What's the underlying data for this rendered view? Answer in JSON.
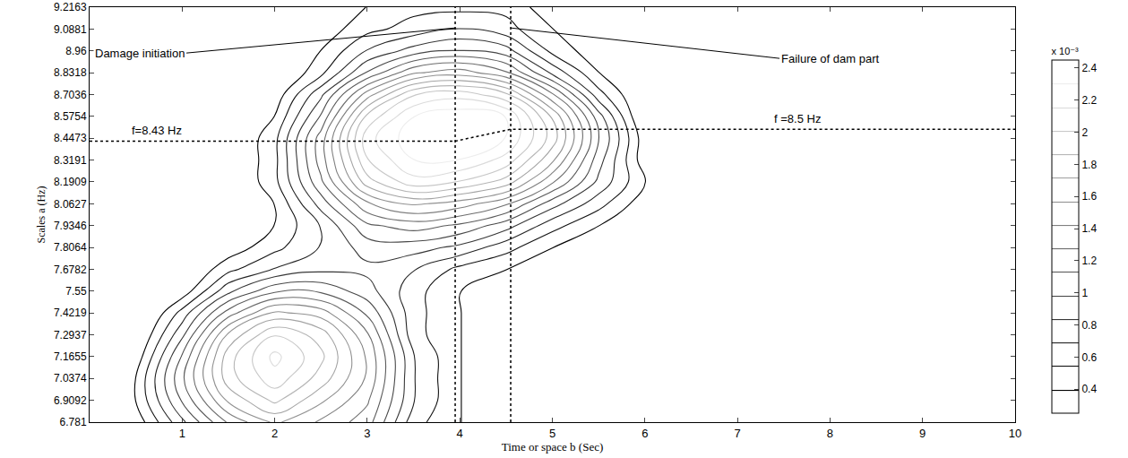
{
  "chart_data": {
    "type": "contour",
    "xlabel": "Time or space b (Sec)",
    "ylabel": "Scales a (Hz)",
    "xlim": [
      0,
      10
    ],
    "xticks": [
      1,
      2,
      3,
      4,
      5,
      6,
      7,
      8,
      9,
      10
    ],
    "ylim": [
      6.781,
      9.2163
    ],
    "yticks": [
      6.781,
      6.9092,
      7.0374,
      7.1655,
      7.2937,
      7.4219,
      7.55,
      7.6782,
      7.8064,
      7.9346,
      8.0627,
      8.1909,
      8.3191,
      8.4473,
      8.5754,
      8.7036,
      8.8318,
      8.96,
      9.0881,
      9.2163
    ],
    "x": [
      0,
      0.5,
      1,
      1.5,
      2,
      2.5,
      3,
      3.5,
      4,
      4.5,
      5,
      5.5,
      6,
      6.5,
      7,
      7.5,
      8,
      8.5,
      9,
      9.5,
      10
    ],
    "y": [
      6.781,
      6.9092,
      7.0374,
      7.1655,
      7.2937,
      7.4219,
      7.55,
      7.6782,
      7.8064,
      7.9346,
      8.0627,
      8.1909,
      8.3191,
      8.4473,
      8.5754,
      8.7036,
      8.8318,
      8.96,
      9.0881,
      9.2163
    ],
    "z": [
      [
        0.1,
        0.3,
        0.8,
        1.3,
        1.6,
        1.4,
        1.2,
        0.6,
        0.4,
        0.3,
        0.2,
        0.1,
        0.1,
        0.1,
        0.1,
        0.2,
        0.3,
        0.3,
        0.3,
        0.1,
        0.1
      ],
      [
        0.1,
        0.4,
        1.0,
        1.6,
        1.9,
        1.6,
        1.3,
        0.7,
        0.4,
        0.3,
        0.2,
        0.1,
        0.1,
        0.2,
        0.1,
        0.1,
        0.2,
        0.2,
        0.2,
        0.1,
        0.1
      ],
      [
        0.1,
        0.4,
        1.1,
        1.8,
        2.1,
        1.8,
        1.4,
        0.7,
        0.4,
        0.3,
        0.2,
        0.1,
        0.3,
        0.2,
        0.1,
        0.1,
        0.1,
        0.1,
        0.1,
        0.1,
        0.1
      ],
      [
        0.1,
        0.3,
        1.0,
        1.8,
        2.2,
        1.9,
        1.4,
        0.7,
        0.4,
        0.3,
        0.2,
        0.2,
        0.1,
        0.3,
        0.2,
        0.1,
        0.1,
        0.1,
        0.1,
        0.1,
        0.1
      ],
      [
        0.1,
        0.2,
        0.8,
        1.6,
        2.0,
        1.8,
        1.3,
        0.6,
        0.4,
        0.3,
        0.2,
        0.1,
        0.1,
        0.3,
        0.3,
        0.2,
        0.1,
        0.1,
        0.1,
        0.1,
        0.1
      ],
      [
        0.1,
        0.1,
        0.6,
        1.2,
        1.6,
        1.5,
        1.1,
        0.6,
        0.4,
        0.3,
        0.2,
        0.3,
        0.1,
        0.2,
        0.3,
        0.2,
        0.1,
        0.1,
        0.1,
        0.1,
        0.1
      ],
      [
        0.1,
        0.1,
        0.3,
        0.8,
        1.1,
        1.1,
        0.9,
        0.6,
        0.4,
        0.3,
        0.2,
        0.1,
        0.1,
        0.1,
        0.2,
        0.3,
        0.1,
        0.1,
        0.1,
        0.1,
        0.1
      ],
      [
        0.1,
        0.1,
        0.2,
        0.5,
        0.7,
        0.8,
        0.8,
        0.7,
        0.5,
        0.4,
        0.3,
        0.2,
        0.1,
        0.1,
        0.1,
        0.1,
        0.1,
        0.1,
        0.1,
        0.1,
        0.1
      ],
      [
        0.1,
        0.1,
        0.1,
        0.3,
        0.5,
        0.7,
        0.9,
        0.9,
        0.8,
        0.6,
        0.4,
        0.2,
        0.1,
        0.1,
        0.1,
        0.1,
        0.1,
        0.1,
        0.1,
        0.1,
        0.1
      ],
      [
        0.1,
        0.1,
        0.1,
        0.2,
        0.4,
        0.7,
        1.1,
        1.2,
        1.1,
        0.9,
        0.6,
        0.4,
        0.2,
        0.1,
        0.1,
        0.1,
        0.1,
        0.1,
        0.1,
        0.1,
        0.1
      ],
      [
        0.1,
        0.1,
        0.1,
        0.2,
        0.4,
        0.9,
        1.4,
        1.6,
        1.5,
        1.3,
        0.9,
        0.6,
        0.3,
        0.1,
        0.1,
        0.1,
        0.1,
        0.1,
        0.1,
        0.1,
        0.1
      ],
      [
        0.1,
        0.1,
        0.1,
        0.2,
        0.5,
        1.1,
        1.8,
        2.1,
        2.0,
        1.8,
        1.3,
        0.8,
        0.4,
        0.1,
        0.1,
        0.1,
        0.1,
        0.1,
        0.1,
        0.1,
        0.1
      ],
      [
        0.1,
        0.1,
        0.1,
        0.2,
        0.5,
        1.2,
        2.0,
        2.3,
        2.3,
        2.1,
        1.6,
        0.9,
        0.3,
        0.1,
        0.1,
        0.1,
        0.1,
        0.1,
        0.1,
        0.1,
        0.1
      ],
      [
        0.1,
        0.1,
        0.1,
        0.2,
        0.5,
        1.2,
        2.1,
        2.4,
        2.4,
        2.3,
        1.8,
        1.0,
        0.3,
        0.1,
        0.1,
        0.1,
        0.1,
        0.1,
        0.1,
        0.1,
        0.1
      ],
      [
        0.1,
        0.1,
        0.1,
        0.1,
        0.4,
        1.0,
        1.9,
        2.3,
        2.4,
        2.3,
        1.7,
        0.9,
        0.2,
        0.1,
        0.1,
        0.1,
        0.1,
        0.1,
        0.1,
        0.1,
        0.1
      ],
      [
        0.1,
        0.1,
        0.1,
        0.1,
        0.3,
        0.8,
        1.5,
        2.0,
        2.1,
        1.9,
        1.3,
        0.6,
        0.2,
        0.1,
        0.1,
        0.1,
        0.1,
        0.1,
        0.1,
        0.1,
        0.1
      ],
      [
        0.1,
        0.1,
        0.1,
        0.1,
        0.2,
        0.5,
        1.0,
        1.4,
        1.5,
        1.3,
        0.8,
        0.4,
        0.1,
        0.1,
        0.1,
        0.1,
        0.1,
        0.1,
        0.1,
        0.1,
        0.1
      ],
      [
        0.1,
        0.1,
        0.1,
        0.1,
        0.1,
        0.4,
        0.7,
        0.9,
        1.0,
        0.9,
        0.5,
        0.3,
        0.1,
        0.1,
        0.1,
        0.1,
        0.1,
        0.1,
        0.1,
        0.1,
        0.1
      ],
      [
        0.1,
        0.1,
        0.1,
        0.1,
        0.1,
        0.3,
        0.5,
        0.6,
        0.7,
        0.6,
        0.4,
        0.2,
        0.1,
        0.1,
        0.1,
        0.1,
        0.1,
        0.1,
        0.1,
        0.1,
        0.1
      ],
      [
        0.1,
        0.1,
        0.1,
        0.1,
        0.1,
        0.3,
        0.4,
        0.5,
        0.5,
        0.5,
        0.3,
        0.2,
        0.1,
        0.1,
        0.1,
        0.1,
        0.1,
        0.1,
        0.1,
        0.1,
        0.1
      ]
    ],
    "zlim": [
      0.25,
      2.45
    ],
    "zticks": [
      0.4,
      0.6,
      0.8,
      1,
      1.2,
      1.4,
      1.6,
      1.8,
      2,
      2.2,
      2.4
    ],
    "colorbar_title": "x 10⁻³",
    "events": [
      {
        "label": "Damage initiation",
        "x": 3.95
      },
      {
        "label": "Failure of dam part",
        "x": 4.55
      }
    ],
    "freq_lines": [
      {
        "label": "f=8.43 Hz",
        "y": 8.43
      },
      {
        "label": "f =8.5 Hz",
        "y": 8.5
      }
    ],
    "line_style": "dotted",
    "grid": false
  }
}
